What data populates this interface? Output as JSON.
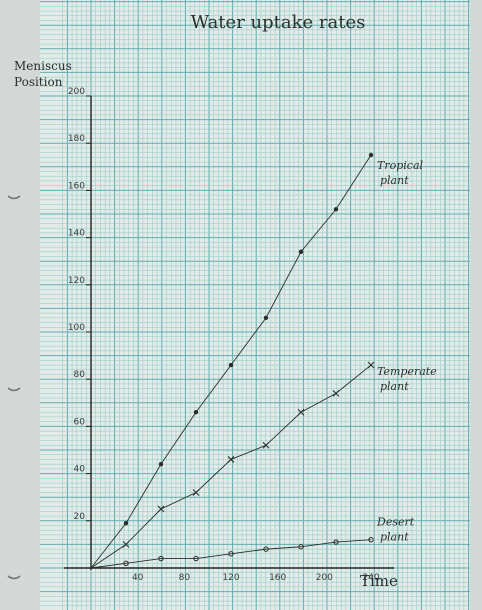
{
  "chart_data": {
    "type": "line",
    "title": "Water uptake rates",
    "ylabel": "Meniscus Position",
    "xlabel": "Time",
    "xlim": [
      0,
      240
    ],
    "ylim": [
      0,
      200
    ],
    "x_ticks": [
      40,
      80,
      120,
      160,
      200,
      240
    ],
    "x_tick_labels": [
      "40",
      "80",
      "120",
      "160",
      "200",
      "240"
    ],
    "y_ticks": [
      20,
      40,
      60,
      80,
      100,
      120,
      140,
      160,
      180,
      200
    ],
    "y_tick_labels": [
      "20",
      "40",
      "60",
      "80",
      "100",
      "120",
      "140",
      "160",
      "180",
      "200"
    ],
    "grid": true,
    "series": [
      {
        "name": "Tropical plant",
        "marker": "dot",
        "label_lines": [
          "Tropical",
          "plant"
        ],
        "x": [
          0,
          30,
          60,
          90,
          120,
          150,
          180,
          210,
          240
        ],
        "y": [
          0,
          19,
          44,
          66,
          86,
          106,
          134,
          152,
          175
        ]
      },
      {
        "name": "Temperate plant",
        "marker": "cross",
        "label_lines": [
          "Temperate",
          "plant"
        ],
        "x": [
          0,
          30,
          60,
          90,
          120,
          150,
          180,
          210,
          240
        ],
        "y": [
          0,
          10,
          25,
          32,
          46,
          52,
          66,
          74,
          86
        ]
      },
      {
        "name": "Desert plant",
        "marker": "circle",
        "label_lines": [
          "Desert",
          "plant"
        ],
        "x": [
          0,
          30,
          60,
          90,
          120,
          150,
          180,
          210,
          240
        ],
        "y": [
          0,
          2,
          4,
          4,
          6,
          8,
          9,
          11,
          12
        ]
      }
    ]
  },
  "colors": {
    "paper": "#e2ebe7",
    "grid_minor": "#8fc7c6",
    "grid_major": "#5eaeb0",
    "axis": "#1e2221",
    "line": "#2a2e2d",
    "background": "#d4d8d6"
  }
}
